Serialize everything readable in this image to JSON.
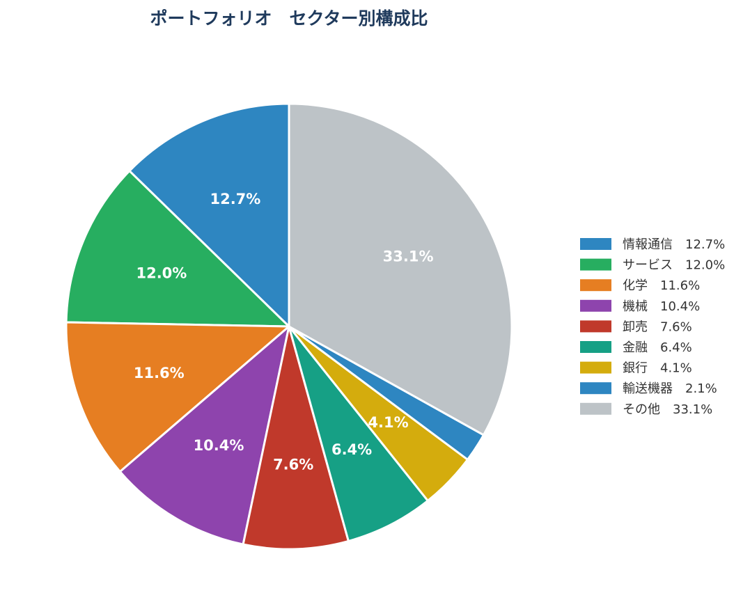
{
  "chart_data": {
    "type": "pie",
    "title": "ポートフォリオ　セクター別構成比",
    "title_color": "#1f3a5c",
    "start_angle": "12 o'clock",
    "direction": "counterclockwise",
    "slice_border_color": "#ffffff",
    "legend_placement": "right",
    "slices": [
      {
        "name": "情報通信",
        "value": 12.7,
        "label": "12.7%",
        "color": "#2e86c1",
        "legend": "情報通信　12.7%"
      },
      {
        "name": "サービス",
        "value": 12.0,
        "label": "12.0%",
        "color": "#27ae60",
        "legend": "サービス　12.0%"
      },
      {
        "name": "化学",
        "value": 11.6,
        "label": "11.6%",
        "color": "#e67e22",
        "legend": "化学　11.6%"
      },
      {
        "name": "機械",
        "value": 10.4,
        "label": "10.4%",
        "color": "#8e44ad",
        "legend": "機械　10.4%"
      },
      {
        "name": "卸売",
        "value": 7.6,
        "label": "7.6%",
        "color": "#c0392b",
        "legend": "卸売　7.6%"
      },
      {
        "name": "金融",
        "value": 6.4,
        "label": "6.4%",
        "color": "#16a085",
        "legend": "金融　6.4%"
      },
      {
        "name": "銀行",
        "value": 4.1,
        "label": "4.1%",
        "color": "#d4ac0d",
        "legend": "銀行　4.1%"
      },
      {
        "name": "輸送機器",
        "value": 2.1,
        "label": "",
        "color": "#2e86c1",
        "legend": "輸送機器　2.1%"
      },
      {
        "name": "その他",
        "value": 33.1,
        "label": "33.1%",
        "color": "#bdc3c7",
        "legend": "その他　33.1%"
      }
    ]
  }
}
